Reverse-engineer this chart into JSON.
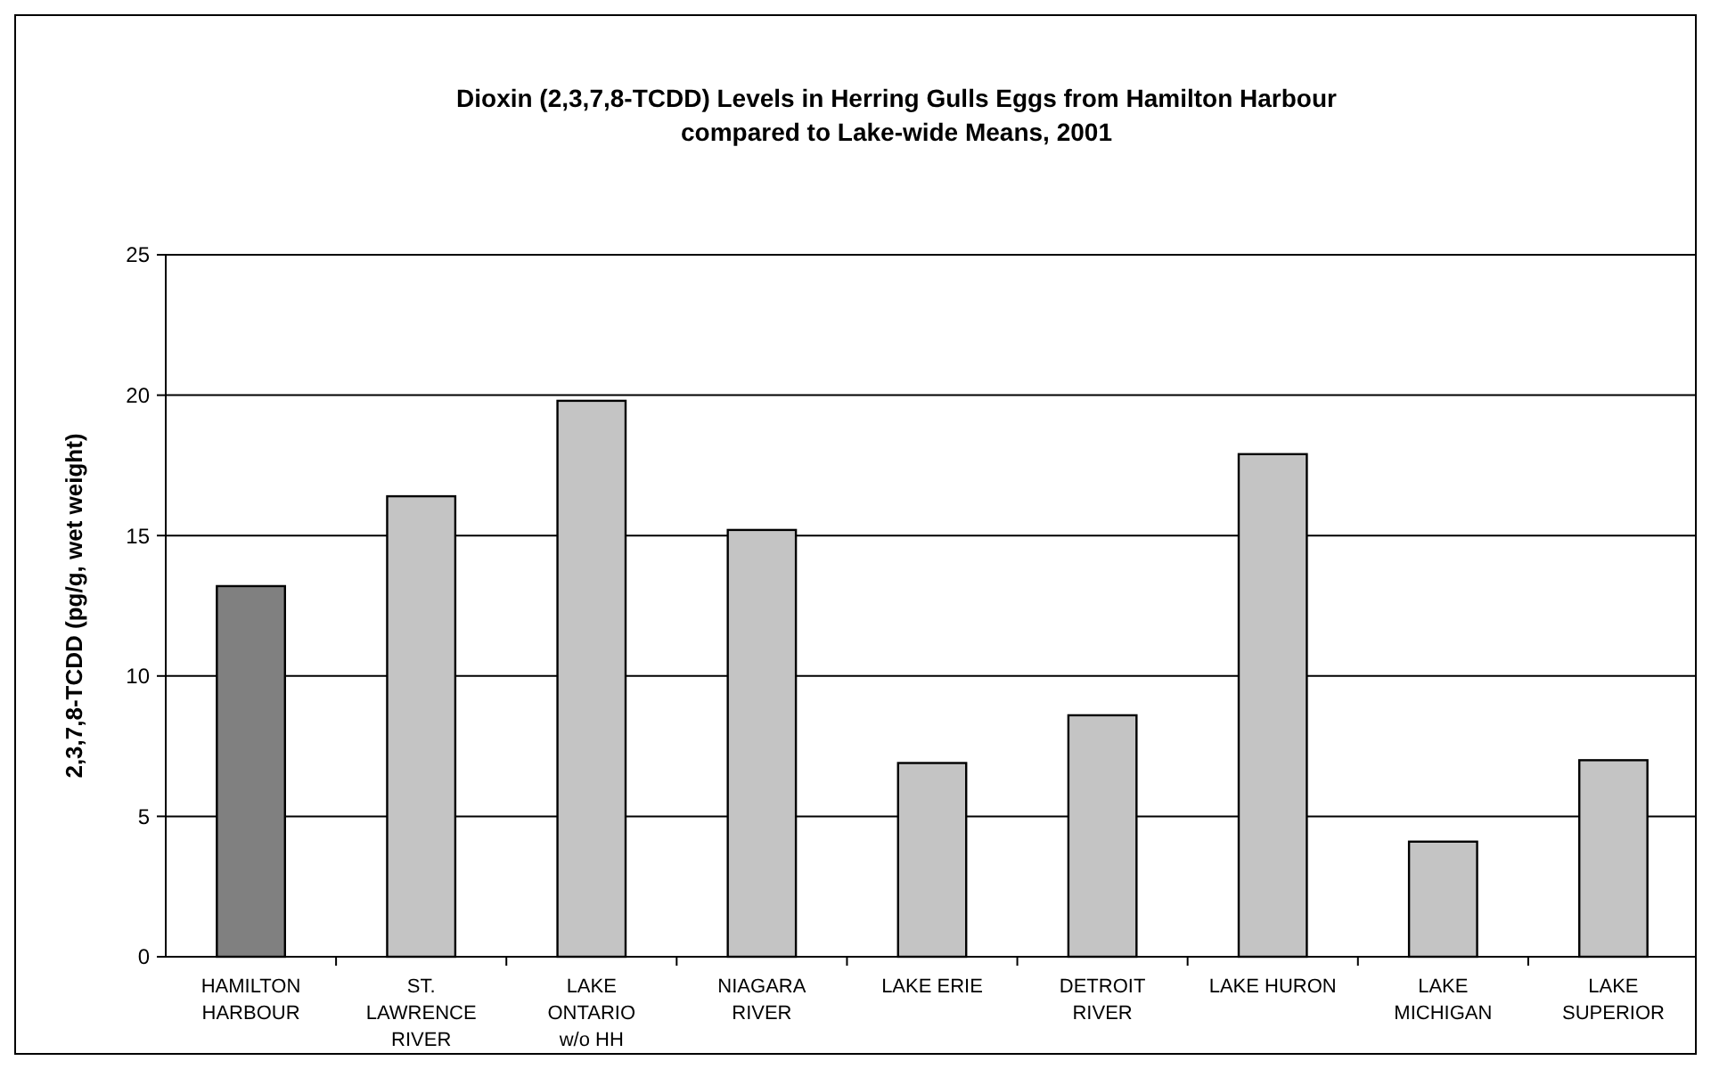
{
  "chart_data": {
    "type": "bar",
    "title": "Dioxin (2,3,7,8-TCDD) Levels in Herring Gulls Eggs from Hamilton Harbour\ncompared to Lake-wide Means, 2001",
    "ylabel": "2,3,7,8-TCDD (pg/g, wet weight)",
    "categories": [
      "HAMILTON\nHARBOUR",
      "ST.\nLAWRENCE\nRIVER",
      "LAKE\nONTARIO\nw/o HH",
      "NIAGARA\nRIVER",
      "LAKE ERIE",
      "DETROIT\nRIVER",
      "LAKE HURON",
      "LAKE\nMICHIGAN",
      "LAKE\nSUPERIOR"
    ],
    "values": [
      13.2,
      16.4,
      19.8,
      15.2,
      6.9,
      8.6,
      17.9,
      4.1,
      7.0
    ],
    "colors": [
      "#808080",
      "#c4c4c4",
      "#c4c4c4",
      "#c4c4c4",
      "#c4c4c4",
      "#c4c4c4",
      "#c4c4c4",
      "#c4c4c4",
      "#c4c4c4"
    ],
    "ylim": [
      0,
      25
    ],
    "yticks": [
      0,
      5,
      10,
      15,
      20,
      25
    ],
    "grid": "y"
  }
}
